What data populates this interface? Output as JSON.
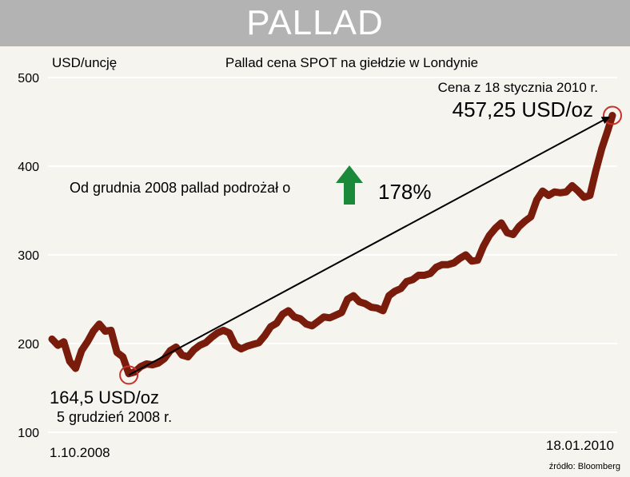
{
  "header": {
    "title": "PALLAD"
  },
  "chart_data": {
    "type": "line",
    "title": "Pallad cena SPOT na giełdzie w Londynie",
    "ylabel": "USD/uncję",
    "ylim": [
      100,
      500
    ],
    "yticks": [
      100,
      200,
      300,
      400,
      500
    ],
    "x_start_label": "1.10.2008",
    "x_end_label": "18.01.2010",
    "grid": true,
    "line_color": "#7a1c0c",
    "series": [
      {
        "x": [
          "2008-10-01",
          "2008-10-06",
          "2008-10-11",
          "2008-10-16",
          "2008-10-21",
          "2008-10-26",
          "2008-10-31",
          "2008-11-05",
          "2008-11-10",
          "2008-11-15",
          "2008-11-20",
          "2008-11-25",
          "2008-11-30",
          "2008-12-05",
          "2008-12-10",
          "2008-12-15",
          "2008-12-20",
          "2008-12-25",
          "2008-12-30",
          "2009-01-04",
          "2009-01-09",
          "2009-01-14",
          "2009-01-19",
          "2009-01-24",
          "2009-01-29",
          "2009-02-03",
          "2009-02-08",
          "2009-02-13",
          "2009-02-18",
          "2009-02-23",
          "2009-02-28",
          "2009-03-05",
          "2009-03-10",
          "2009-03-15",
          "2009-03-20",
          "2009-03-25",
          "2009-03-30",
          "2009-04-04",
          "2009-04-09",
          "2009-04-14",
          "2009-04-19",
          "2009-04-24",
          "2009-04-29",
          "2009-05-04",
          "2009-05-09",
          "2009-05-14",
          "2009-05-19",
          "2009-05-24",
          "2009-05-29",
          "2009-06-03",
          "2009-06-08",
          "2009-06-13",
          "2009-06-18",
          "2009-06-23",
          "2009-06-28",
          "2009-07-03",
          "2009-07-08",
          "2009-07-13",
          "2009-07-18",
          "2009-07-23",
          "2009-07-28",
          "2009-08-02",
          "2009-08-07",
          "2009-08-12",
          "2009-08-17",
          "2009-08-22",
          "2009-08-27",
          "2009-09-01",
          "2009-09-06",
          "2009-09-11",
          "2009-09-16",
          "2009-09-21",
          "2009-09-26",
          "2009-10-01",
          "2009-10-06",
          "2009-10-11",
          "2009-10-16",
          "2009-10-21",
          "2009-10-26",
          "2009-10-31",
          "2009-11-05",
          "2009-11-10",
          "2009-11-15",
          "2009-11-20",
          "2009-11-25",
          "2009-11-30",
          "2009-12-05",
          "2009-12-10",
          "2009-12-15",
          "2009-12-20",
          "2009-12-25",
          "2009-12-30",
          "2010-01-04",
          "2010-01-09",
          "2010-01-14",
          "2010-01-18"
        ],
        "y": [
          205,
          198,
          202,
          180,
          172,
          192,
          202,
          214,
          222,
          214,
          215,
          190,
          185,
          166,
          168,
          174,
          177,
          176,
          178,
          183,
          192,
          196,
          187,
          185,
          193,
          198,
          201,
          207,
          212,
          215,
          212,
          198,
          194,
          197,
          199,
          201,
          209,
          219,
          223,
          233,
          237,
          230,
          228,
          222,
          220,
          225,
          230,
          229,
          232,
          235,
          250,
          254,
          247,
          245,
          241,
          240,
          237,
          254,
          259,
          262,
          270,
          272,
          277,
          277,
          279,
          286,
          289,
          289,
          291,
          296,
          300,
          293,
          294,
          310,
          322,
          330,
          336,
          325,
          323,
          332,
          338,
          343,
          362,
          372,
          367,
          371,
          370,
          371,
          378,
          372,
          365,
          367,
          395,
          420,
          440,
          457.25
        ]
      }
    ],
    "annotations": {
      "end_date_label": "Cena z 18 stycznia 2010 r.",
      "end_price_label": "457,25 USD/oz",
      "end_price": 457.25,
      "start_price_label": "164,5 USD/oz",
      "start_price": 164.5,
      "start_date_label": "5 grudzień 2008 r.",
      "start_date": "2008-12-05",
      "end_date": "2010-01-18",
      "gain_text": "Od grudnia 2008 pallad podrożał o",
      "gain_percent": "178%",
      "arrow_color": "#1a8a3a"
    },
    "source": "źródło: Bloomberg"
  }
}
